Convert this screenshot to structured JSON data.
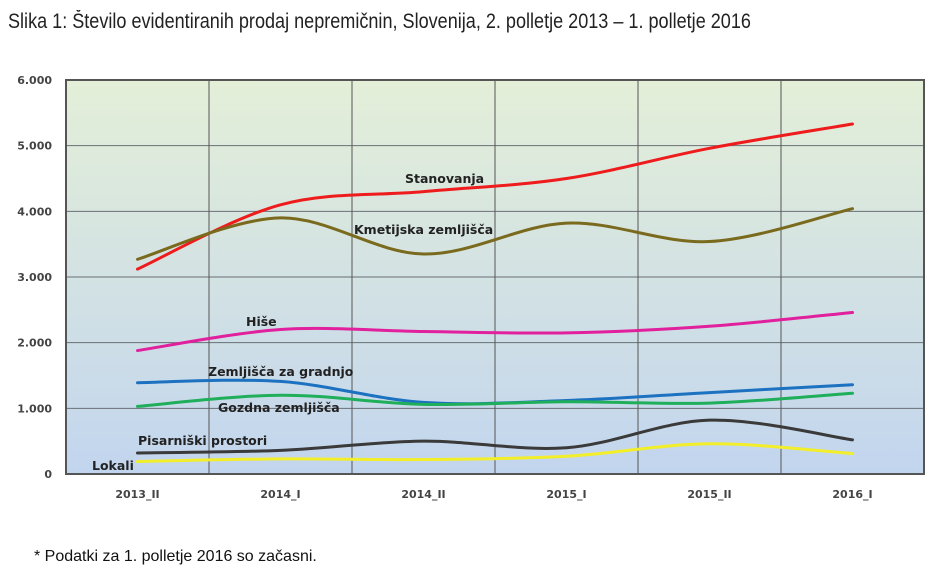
{
  "title": "Slika 1: Število evidentiranih prodaj nepremičnin, Slovenija, 2. polletje 2013 – 1. polletje 2016",
  "note": "* Podatki za 1. polletje 2016 so začasni.",
  "chart_data": {
    "type": "line",
    "title": "Slika 1: Število evidentiranih prodaj nepremičnin, Slovenija, 2. polletje 2013 – 1. polletje 2016",
    "categories": [
      "2013_II",
      "2014_I",
      "2014_II",
      "2015_I",
      "2015_II",
      "2016_I"
    ],
    "ylim": [
      0,
      6000
    ],
    "yticks": [
      "0",
      "1.000",
      "2.000",
      "3.000",
      "4.000",
      "5.000",
      "6.000"
    ],
    "grid": true,
    "legend": "inline labels",
    "background": [
      "#e4efd8",
      "#c2d5ee"
    ],
    "series": [
      {
        "name": "Stanovanja",
        "color": "#ee1c1c",
        "values": [
          3120,
          4100,
          4300,
          4500,
          4960,
          5330
        ]
      },
      {
        "name": "Kmetijska zemljišča",
        "color": "#7a6a1e",
        "values": [
          3270,
          3900,
          3350,
          3820,
          3540,
          4040
        ]
      },
      {
        "name": "Hiše",
        "color": "#e0209c",
        "values": [
          1880,
          2200,
          2170,
          2150,
          2250,
          2460
        ]
      },
      {
        "name": "Zemljišča za gradnjo",
        "color": "#1c72c0",
        "values": [
          1390,
          1410,
          1090,
          1120,
          1240,
          1360
        ]
      },
      {
        "name": "Gozdna zemljišča",
        "color": "#1fae5a",
        "values": [
          1030,
          1200,
          1060,
          1100,
          1080,
          1230
        ]
      },
      {
        "name": "Pisarniški prostori",
        "color": "#3a3a3a",
        "values": [
          320,
          360,
          500,
          400,
          820,
          520
        ]
      },
      {
        "name": "Lokali",
        "color": "#f2ee2a",
        "values": [
          190,
          230,
          220,
          270,
          460,
          310
        ]
      }
    ]
  }
}
